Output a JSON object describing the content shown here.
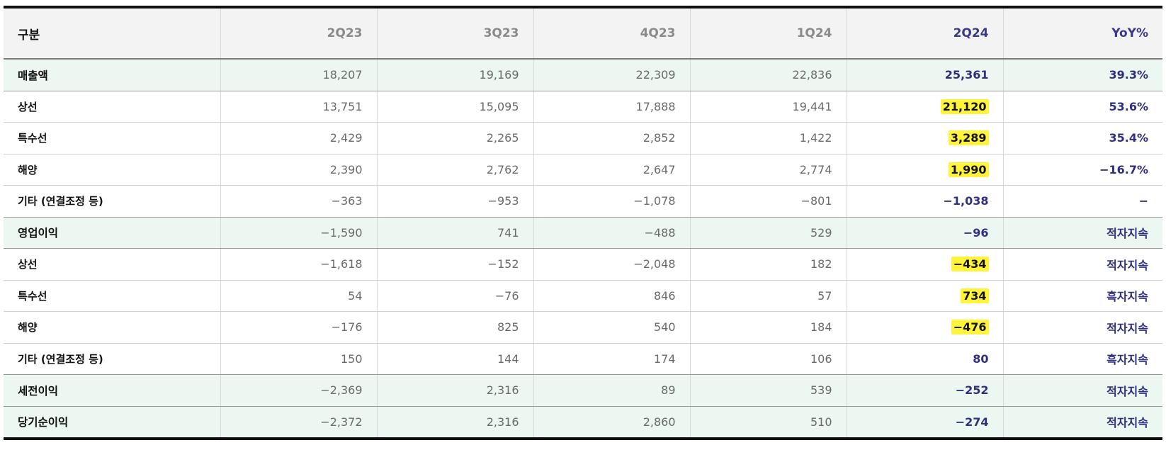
{
  "header": {
    "label": "구분",
    "columns": [
      "2Q23",
      "3Q23",
      "4Q23",
      "1Q24",
      "2Q24",
      "YoY%"
    ]
  },
  "rows": [
    {
      "label": "매출액",
      "group": true,
      "values": [
        "18,207",
        "19,169",
        "22,309",
        "22,836"
      ],
      "current": "25,361",
      "yoy": "39.3%",
      "highlight": false
    },
    {
      "label": "상선",
      "group": false,
      "values": [
        "13,751",
        "15,095",
        "17,888",
        "19,441"
      ],
      "current": "21,120",
      "yoy": "53.6%",
      "highlight": true
    },
    {
      "label": "특수선",
      "group": false,
      "values": [
        "2,429",
        "2,265",
        "2,852",
        "1,422"
      ],
      "current": "3,289",
      "yoy": "35.4%",
      "highlight": true
    },
    {
      "label": "해양",
      "group": false,
      "values": [
        "2,390",
        "2,762",
        "2,647",
        "2,774"
      ],
      "current": "1,990",
      "yoy": "−16.7%",
      "highlight": true
    },
    {
      "label": "기타 (연결조정 등)",
      "group": false,
      "values": [
        "−363",
        "−953",
        "−1,078",
        "−801"
      ],
      "current": "−1,038",
      "yoy": "−",
      "highlight": false
    },
    {
      "label": "영업이익",
      "group": true,
      "values": [
        "−1,590",
        "741",
        "−488",
        "529"
      ],
      "current": "−96",
      "yoy": "적자지속",
      "highlight": false
    },
    {
      "label": "상선",
      "group": false,
      "values": [
        "−1,618",
        "−152",
        "−2,048",
        "182"
      ],
      "current": "−434",
      "yoy": "적자지속",
      "highlight": true
    },
    {
      "label": "특수선",
      "group": false,
      "values": [
        "54",
        "−76",
        "846",
        "57"
      ],
      "current": "734",
      "yoy": "흑자지속",
      "highlight": true
    },
    {
      "label": "해양",
      "group": false,
      "values": [
        "−176",
        "825",
        "540",
        "184"
      ],
      "current": "−476",
      "yoy": "적자지속",
      "highlight": true
    },
    {
      "label": "기타 (연결조정 등)",
      "group": false,
      "values": [
        "150",
        "144",
        "174",
        "106"
      ],
      "current": "80",
      "yoy": "흑자지속",
      "highlight": false
    },
    {
      "label": "세전이익",
      "group": true,
      "values": [
        "−2,369",
        "2,316",
        "89",
        "539"
      ],
      "current": "−252",
      "yoy": "적자지속",
      "highlight": false
    },
    {
      "label": "당기순이익",
      "group": true,
      "values": [
        "−2,372",
        "2,316",
        "2,860",
        "510"
      ],
      "current": "−274",
      "yoy": "적자지속",
      "highlight": false
    }
  ],
  "colors": {
    "group_bg": "#ecf7f1",
    "header_bg": "#f3f3f3",
    "accent": "#2f2f7d",
    "highlight": "#fff43a"
  }
}
